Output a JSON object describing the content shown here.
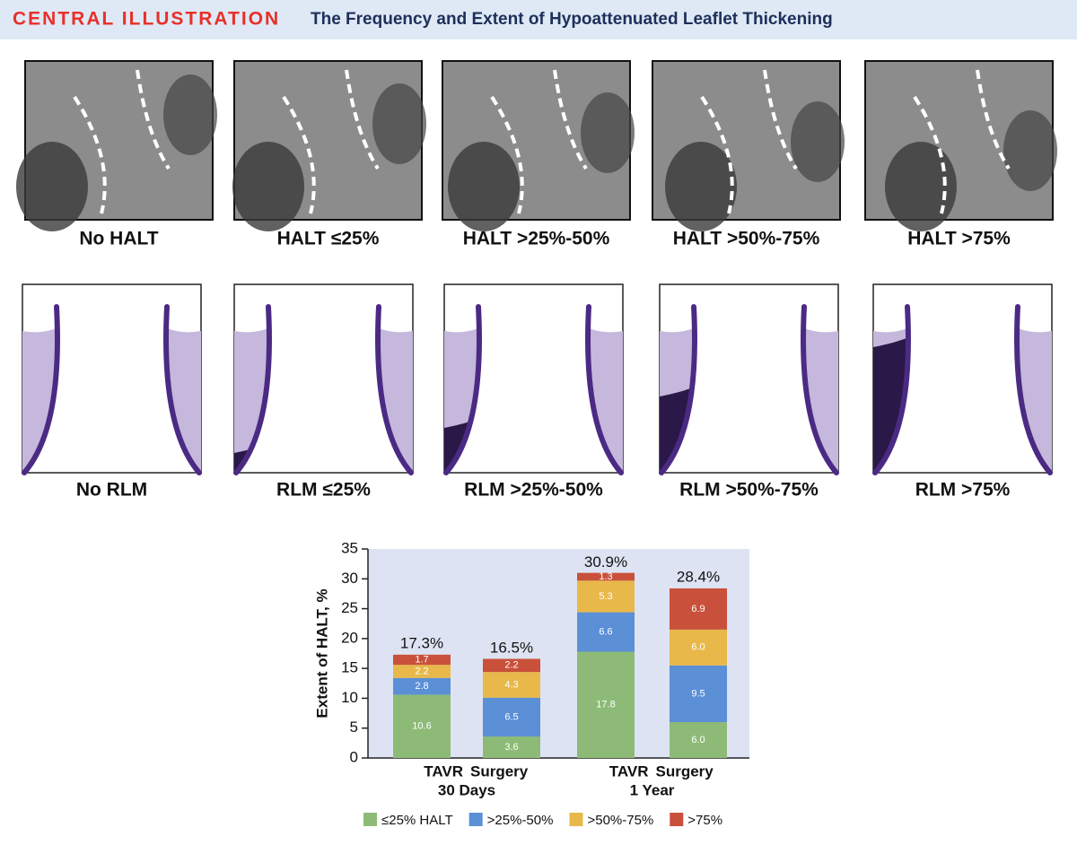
{
  "header": {
    "tag": "CENTRAL ILLUSTRATION",
    "title": "The Frequency and Extent of Hypoattenuated Leaflet Thickening"
  },
  "ct_images": {
    "labels": [
      "No HALT",
      "HALT ≤25%",
      "HALT >25%-50%",
      "HALT >50%-75%",
      "HALT >75%"
    ]
  },
  "diagrams": {
    "labels": [
      "No RLM",
      "RLM ≤25%",
      "RLM >25%-50%",
      "RLM >50%-75%",
      "RLM >75%"
    ]
  },
  "chart_data": {
    "type": "stacked_bar",
    "ylabel": "Extent of HALT, %",
    "categories": [
      "TAVR",
      "Surgery",
      "TAVR",
      "Surgery"
    ],
    "groups": [
      "30 Days",
      "1 Year"
    ],
    "series": [
      {
        "name": "≤25% HALT",
        "color": "#8dbb77",
        "values": [
          10.6,
          3.6,
          17.8,
          6.0
        ],
        "value_labels": [
          "10.6",
          "3.6",
          "17.8",
          "6.0"
        ]
      },
      {
        "name": ">25%-50%",
        "color": "#5b8fd6",
        "values": [
          2.8,
          6.5,
          6.6,
          9.5
        ],
        "value_labels": [
          "2.8",
          "6.5",
          "6.6",
          "9.5"
        ]
      },
      {
        "name": ">50%-75%",
        "color": "#e8b84a",
        "values": [
          2.2,
          4.3,
          5.3,
          6.0
        ],
        "value_labels": [
          "2.2",
          "4.3",
          "5.3",
          "6.0"
        ]
      },
      {
        "name": ">75%",
        "color": "#c9503a",
        "values": [
          1.7,
          2.2,
          1.3,
          6.9
        ],
        "value_labels": [
          "1.7",
          "2.2",
          "1.3",
          "6.9"
        ]
      }
    ],
    "totals": [
      17.3,
      16.5,
      30.9,
      28.4
    ],
    "total_labels": [
      "17.3%",
      "16.5%",
      "30.9%",
      "28.4%"
    ],
    "ylim": [
      0,
      35
    ],
    "yticks": [
      0,
      5,
      10,
      15,
      20,
      25,
      30,
      35
    ]
  }
}
